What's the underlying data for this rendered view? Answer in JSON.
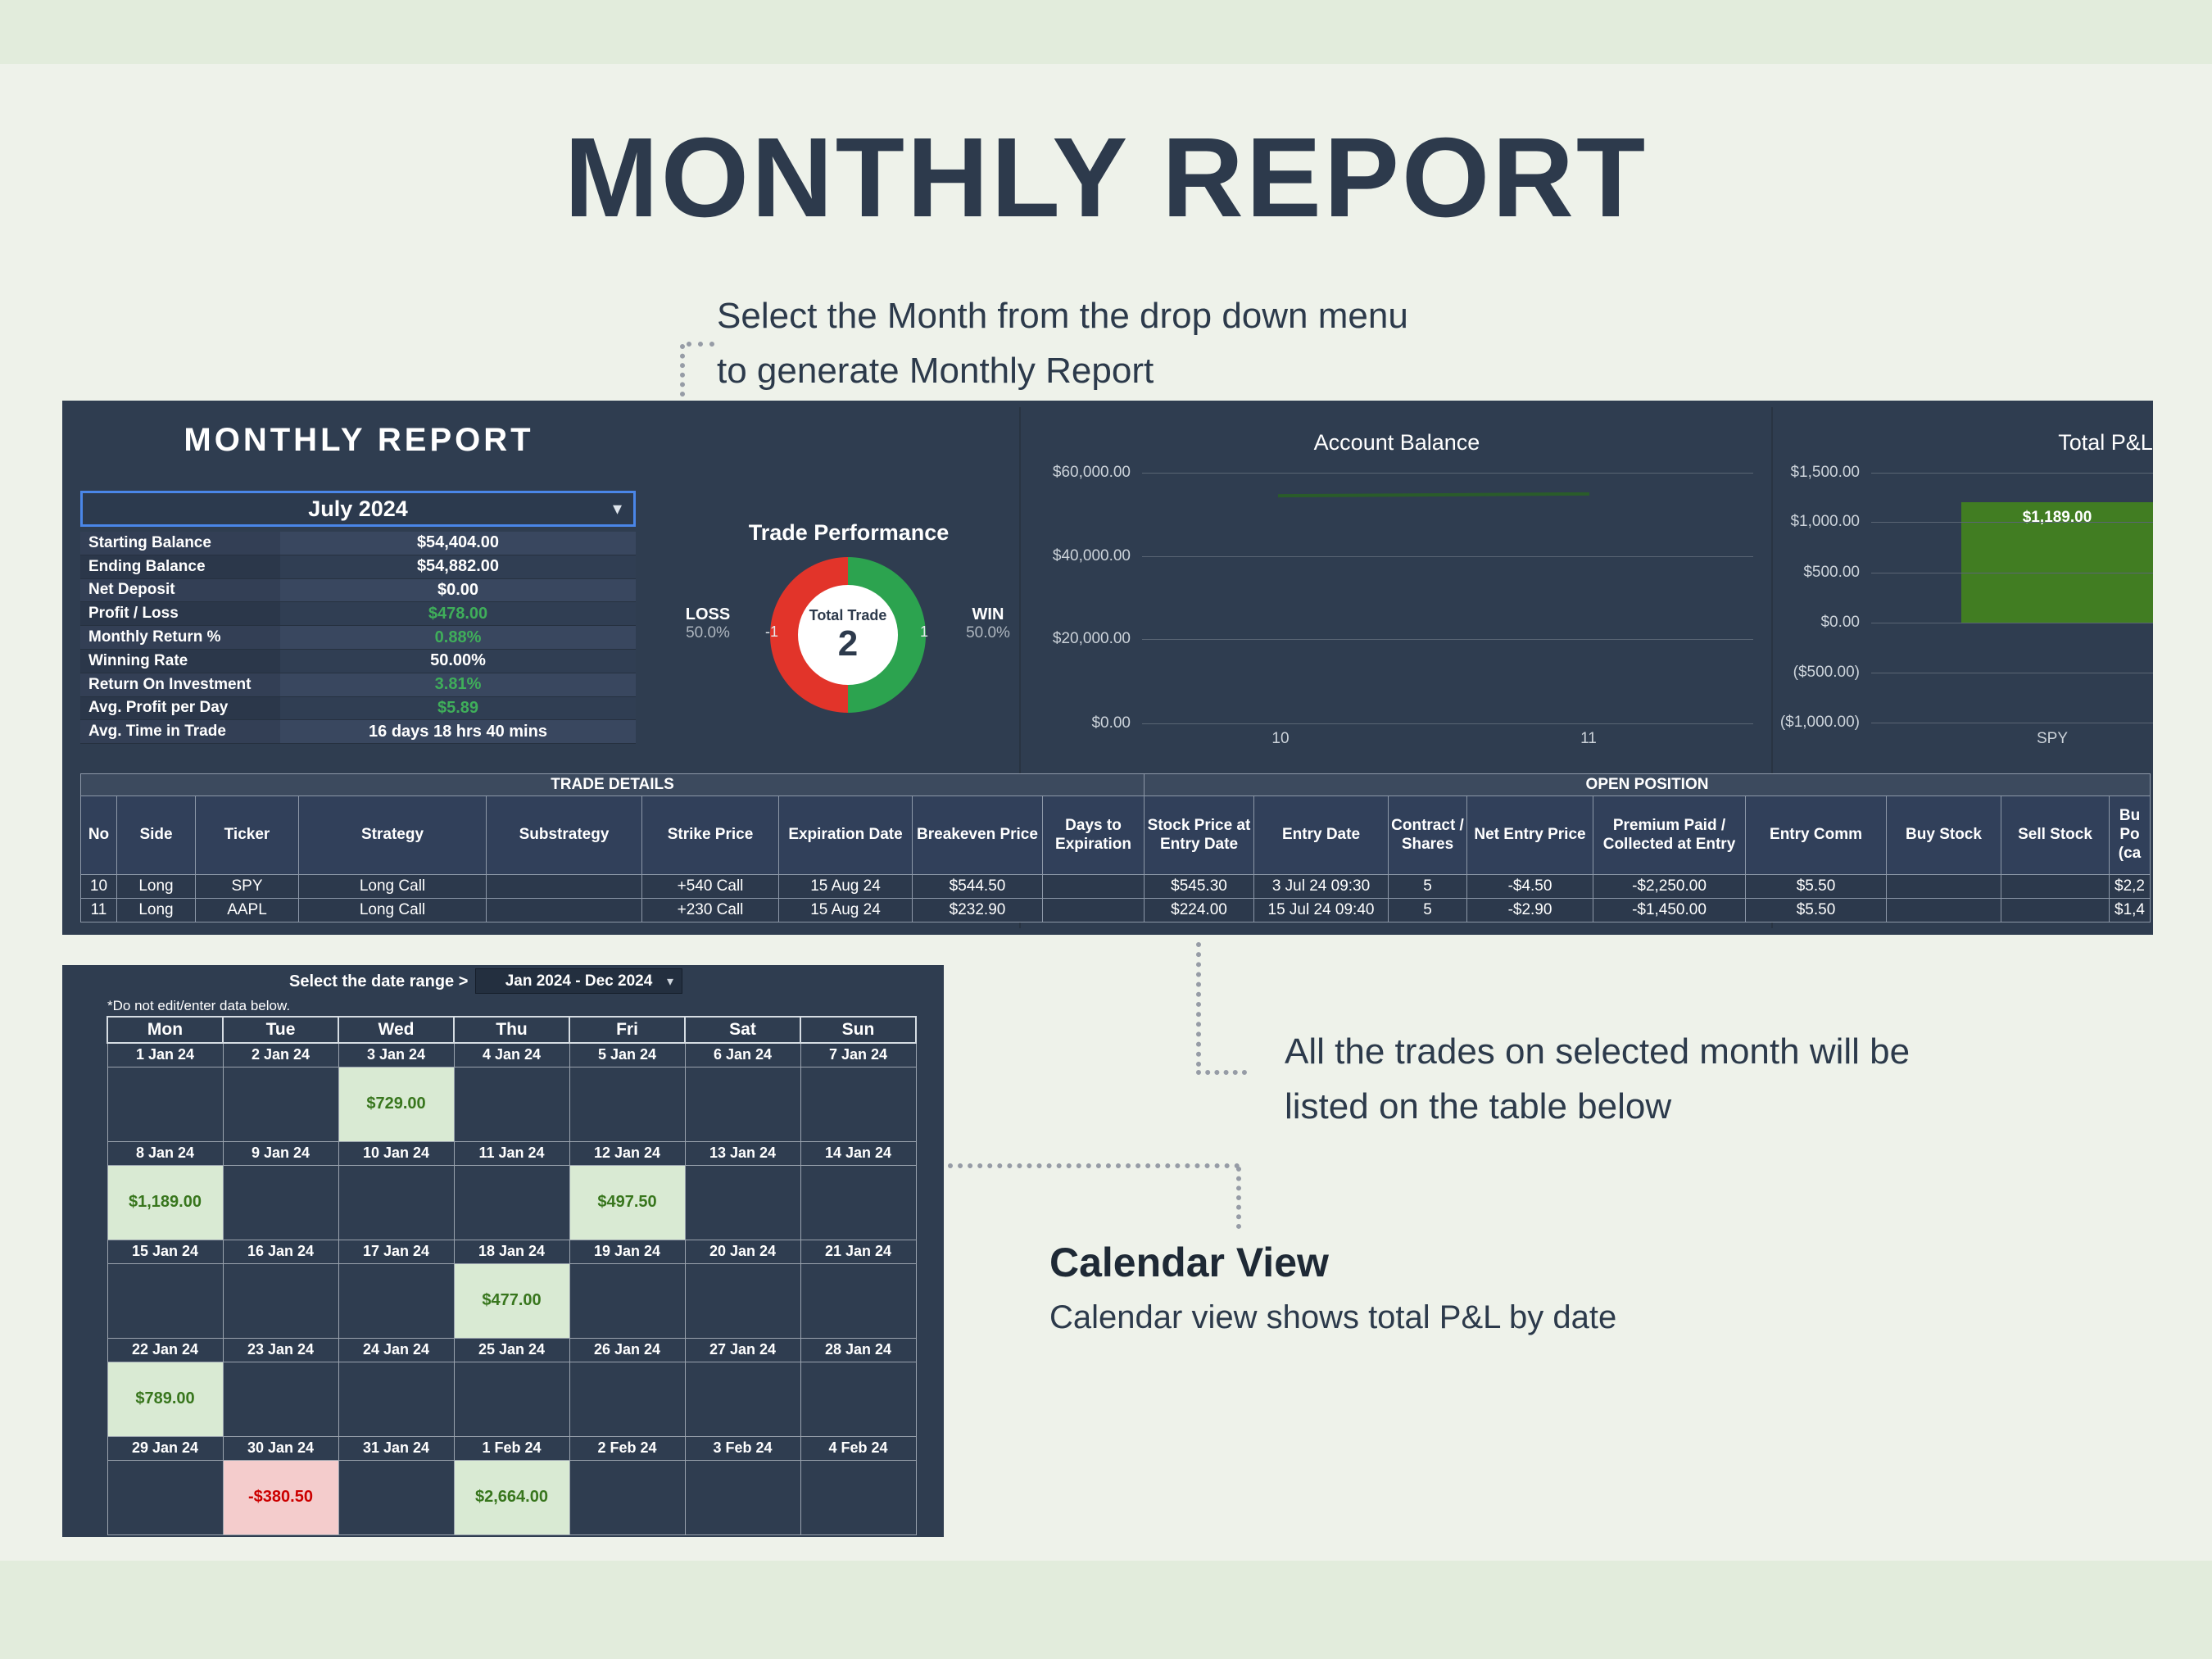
{
  "page": {
    "title": "MONTHLY REPORT"
  },
  "icons": {
    "chevron_down": "▾"
  },
  "annotations": {
    "dropdown_note_line1": "Select the Month from the drop down menu",
    "dropdown_note_line2": "to generate Monthly Report",
    "table_note_line1": "All the trades on selected month will be",
    "table_note_line2": "listed on the table below",
    "calendar_heading": "Calendar View",
    "calendar_subtext": "Calendar view shows total P&L by date"
  },
  "dashboard": {
    "header": "MONTHLY REPORT",
    "month_dropdown_value": "July 2024",
    "stats": [
      {
        "label": "Starting Balance",
        "value": "$54,404.00",
        "green": false
      },
      {
        "label": "Ending Balance",
        "value": "$54,882.00",
        "green": false
      },
      {
        "label": "Net Deposit",
        "value": "$0.00",
        "green": false
      },
      {
        "label": "Profit / Loss",
        "value": "$478.00",
        "green": true
      },
      {
        "label": "Monthly Return %",
        "value": "0.88%",
        "green": true
      },
      {
        "label": "Winning Rate",
        "value": "50.00%",
        "green": false
      },
      {
        "label": "Return On Investment",
        "value": "3.81%",
        "green": true
      },
      {
        "label": "Avg. Profit per Day",
        "value": "$5.89",
        "green": true
      },
      {
        "label": "Avg. Time in Trade",
        "value": "16 days 18 hrs 40 mins",
        "green": false
      }
    ],
    "trade_performance": {
      "title": "Trade Performance",
      "loss_label": "LOSS",
      "loss_pct": "50.0%",
      "loss_count": "-1",
      "win_label": "WIN",
      "win_pct": "50.0%",
      "win_count": "1",
      "center_label": "Total Trade",
      "center_value": "2",
      "loss_color": "#e2342a",
      "win_color": "#2ca34f"
    },
    "account_balance_chart": {
      "type": "line",
      "title": "Account Balance",
      "y_ticks": [
        "$60,000.00",
        "$40,000.00",
        "$20,000.00",
        "$0.00"
      ],
      "x_ticks": [
        "10",
        "11"
      ],
      "series": [
        {
          "name": "Account Balance",
          "x": [
            10,
            11
          ],
          "values": [
            54404,
            54882
          ]
        }
      ],
      "ylim": [
        0,
        60000
      ],
      "line_color": "#2a5c2a"
    },
    "total_pl_chart": {
      "type": "bar",
      "title": "Total P&L",
      "y_ticks": [
        "$1,500.00",
        "$1,000.00",
        "$500.00",
        "$0.00",
        "($500.00)",
        "($1,000.00)"
      ],
      "categories": [
        "SPY"
      ],
      "values": [
        1189
      ],
      "bar_label": "$1,189.00",
      "ylim": [
        -1000,
        1500
      ],
      "bar_color": "#417d22"
    }
  },
  "trade_table": {
    "group_headers": [
      "TRADE DETAILS",
      "OPEN POSITION"
    ],
    "columns": [
      "No",
      "Side",
      "Ticker",
      "Strategy",
      "Substrategy",
      "Strike Price",
      "Expiration Date",
      "Breakeven Price",
      "Days to Expiration",
      "Stock Price at Entry Date",
      "Entry Date",
      "Contract / Shares",
      "Net Entry Price",
      "Premium Paid / Collected at Entry",
      "Entry Comm",
      "Buy Stock",
      "Sell Stock",
      "Bu Po (ca"
    ],
    "rows": [
      [
        "10",
        "Long",
        "SPY",
        "Long Call",
        "",
        "+540 Call",
        "15 Aug 24",
        "$544.50",
        "",
        "$545.30",
        "3 Jul 24 09:30",
        "5",
        "-$4.50",
        "-$2,250.00",
        "$5.50",
        "",
        "",
        "$2,2"
      ],
      [
        "11",
        "Long",
        "AAPL",
        "Long Call",
        "",
        "+230 Call",
        "15 Aug 24",
        "$232.90",
        "",
        "$224.00",
        "15 Jul 24 09:40",
        "5",
        "-$2.90",
        "-$1,450.00",
        "$5.50",
        "",
        "",
        "$1,4"
      ]
    ]
  },
  "calendar": {
    "range_label": "Select the date range >",
    "range_value": "Jan 2024 - Dec 2024",
    "note": "*Do not edit/enter data below.",
    "day_headers": [
      "Mon",
      "Tue",
      "Wed",
      "Thu",
      "Fri",
      "Sat",
      "Sun"
    ],
    "weeks": [
      {
        "dates": [
          "1 Jan 24",
          "2 Jan 24",
          "3 Jan 24",
          "4 Jan 24",
          "5 Jan 24",
          "6 Jan 24",
          "7 Jan 24"
        ],
        "values": [
          "",
          "",
          "$729.00",
          "",
          "",
          "",
          ""
        ],
        "types": [
          "",
          "",
          "pos",
          "",
          "",
          "",
          ""
        ]
      },
      {
        "dates": [
          "8 Jan 24",
          "9 Jan 24",
          "10 Jan 24",
          "11 Jan 24",
          "12 Jan 24",
          "13 Jan 24",
          "14 Jan 24"
        ],
        "values": [
          "$1,189.00",
          "",
          "",
          "",
          "$497.50",
          "",
          ""
        ],
        "types": [
          "pos",
          "",
          "",
          "",
          "pos",
          "",
          ""
        ]
      },
      {
        "dates": [
          "15 Jan 24",
          "16 Jan 24",
          "17 Jan 24",
          "18 Jan 24",
          "19 Jan 24",
          "20 Jan 24",
          "21 Jan 24"
        ],
        "values": [
          "",
          "",
          "",
          "$477.00",
          "",
          "",
          ""
        ],
        "types": [
          "",
          "",
          "",
          "pos",
          "",
          "",
          ""
        ]
      },
      {
        "dates": [
          "22 Jan 24",
          "23 Jan 24",
          "24 Jan 24",
          "25 Jan 24",
          "26 Jan 24",
          "27 Jan 24",
          "28 Jan 24"
        ],
        "values": [
          "$789.00",
          "",
          "",
          "",
          "",
          "",
          ""
        ],
        "types": [
          "pos",
          "",
          "",
          "",
          "",
          "",
          ""
        ]
      },
      {
        "dates": [
          "29 Jan 24",
          "30 Jan 24",
          "31 Jan 24",
          "1 Feb 24",
          "2 Feb 24",
          "3 Feb 24",
          "4 Feb 24"
        ],
        "values": [
          "",
          "-$380.50",
          "",
          "$2,664.00",
          "",
          "",
          ""
        ],
        "types": [
          "",
          "neg",
          "",
          "pos",
          "",
          "",
          ""
        ]
      }
    ]
  }
}
